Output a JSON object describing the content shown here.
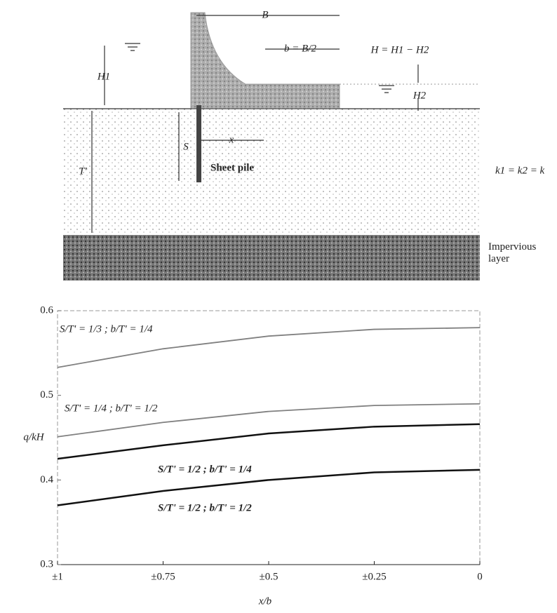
{
  "diagram": {
    "labels": {
      "B": "B",
      "b": "b = B/2",
      "H": "H = H1 − H2",
      "H1": "H1",
      "H2": "H2",
      "S": "S",
      "x": "x",
      "T": "T'",
      "pile": "Sheet pile",
      "k": "k1 = k2 = k",
      "layer": "Impervious layer"
    }
  },
  "chart_data": {
    "type": "line",
    "y_label": "q/kH",
    "x_label": "x/b",
    "x": [
      1,
      0.75,
      0.5,
      0.25,
      0
    ],
    "xlim": [
      1,
      0
    ],
    "xticks": [
      {
        "value": 1,
        "label": "±1"
      },
      {
        "value": 0.75,
        "label": "±0.75"
      },
      {
        "value": 0.5,
        "label": "±0.5"
      },
      {
        "value": 0.25,
        "label": "±0.25"
      },
      0
    ],
    "ylim": [
      0.3,
      0.6
    ],
    "yticks": [
      0.3,
      0.4,
      0.5,
      0.6
    ],
    "series": [
      {
        "name": "S/T' = 1/3 ; b/T' = 1/4",
        "color": "#808080",
        "values": [
          0.533,
          0.555,
          0.57,
          0.578,
          0.58
        ]
      },
      {
        "name": "S/T' = 1/4 ; b/T' = 1/2",
        "color": "#808080",
        "values": [
          0.451,
          0.468,
          0.481,
          0.488,
          0.49
        ]
      },
      {
        "name": "S/T' = 1/2 ; b/T' = 1/4",
        "color": "#111111",
        "values": [
          0.425,
          0.441,
          0.455,
          0.463,
          0.466
        ]
      },
      {
        "name": "S/T' = 1/2 ; b/T' = 1/2",
        "color": "#111111",
        "values": [
          0.37,
          0.387,
          0.4,
          0.409,
          0.412
        ]
      }
    ]
  }
}
